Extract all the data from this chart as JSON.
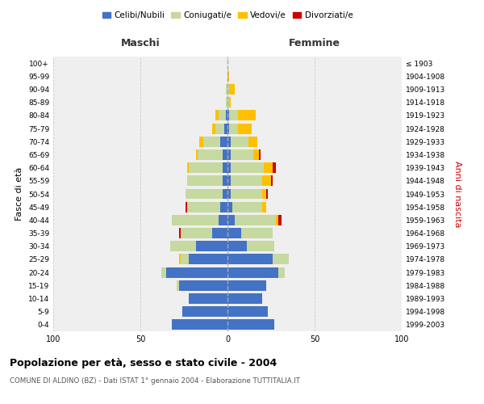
{
  "age_groups": [
    "0-4",
    "5-9",
    "10-14",
    "15-19",
    "20-24",
    "25-29",
    "30-34",
    "35-39",
    "40-44",
    "45-49",
    "50-54",
    "55-59",
    "60-64",
    "65-69",
    "70-74",
    "75-79",
    "80-84",
    "85-89",
    "90-94",
    "95-99",
    "100+"
  ],
  "birth_years": [
    "1999-2003",
    "1994-1998",
    "1989-1993",
    "1984-1988",
    "1979-1983",
    "1974-1978",
    "1969-1973",
    "1964-1968",
    "1959-1963",
    "1954-1958",
    "1949-1953",
    "1944-1948",
    "1939-1943",
    "1934-1938",
    "1929-1933",
    "1924-1928",
    "1919-1923",
    "1914-1918",
    "1909-1913",
    "1904-1908",
    "≤ 1903"
  ],
  "maschi": {
    "celibi": [
      32,
      26,
      22,
      28,
      35,
      22,
      18,
      9,
      5,
      4,
      3,
      3,
      3,
      3,
      4,
      2,
      1,
      0,
      0,
      0,
      0
    ],
    "coniugati": [
      0,
      0,
      0,
      1,
      3,
      5,
      15,
      18,
      27,
      19,
      21,
      20,
      19,
      14,
      10,
      5,
      4,
      1,
      1,
      0,
      0
    ],
    "vedovi": [
      0,
      0,
      0,
      0,
      0,
      1,
      0,
      0,
      0,
      0,
      0,
      0,
      1,
      1,
      2,
      2,
      2,
      0,
      0,
      0,
      0
    ],
    "divorziati": [
      0,
      0,
      0,
      0,
      0,
      0,
      0,
      1,
      0,
      1,
      0,
      0,
      0,
      0,
      0,
      0,
      0,
      0,
      0,
      0,
      0
    ]
  },
  "femmine": {
    "nubili": [
      27,
      23,
      20,
      22,
      29,
      26,
      11,
      8,
      4,
      3,
      2,
      2,
      2,
      2,
      2,
      1,
      1,
      0,
      0,
      0,
      0
    ],
    "coniugate": [
      0,
      0,
      0,
      0,
      4,
      9,
      16,
      18,
      24,
      17,
      18,
      18,
      19,
      13,
      10,
      5,
      5,
      1,
      1,
      0,
      0
    ],
    "vedove": [
      0,
      0,
      0,
      0,
      0,
      0,
      0,
      0,
      1,
      2,
      2,
      5,
      5,
      3,
      5,
      8,
      10,
      1,
      3,
      1,
      0
    ],
    "divorziate": [
      0,
      0,
      0,
      0,
      0,
      0,
      0,
      0,
      2,
      0,
      1,
      1,
      2,
      1,
      0,
      0,
      0,
      0,
      0,
      0,
      0
    ]
  },
  "colors": {
    "celibi": "#4472c4",
    "coniugati": "#c5d9a0",
    "vedovi": "#ffc000",
    "divorziati": "#cc0000"
  },
  "title": "Popolazione per età, sesso e stato civile - 2004",
  "subtitle": "COMUNE DI ALDINO (BZ) - Dati ISTAT 1° gennaio 2004 - Elaborazione TUTTITALIA.IT",
  "xlabel_left": "Maschi",
  "xlabel_right": "Femmine",
  "ylabel_left": "Fasce di età",
  "ylabel_right": "Anni di nascita",
  "xlim": 100,
  "legend_labels": [
    "Celibi/Nubili",
    "Coniugati/e",
    "Vedovi/e",
    "Divorziati/e"
  ],
  "background_color": "#ffffff",
  "plot_bg_color": "#efefef"
}
